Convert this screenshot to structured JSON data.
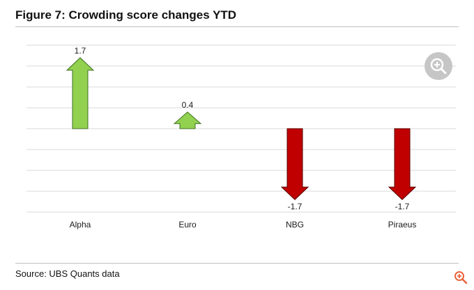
{
  "figure": {
    "title": "Figure 7: Crowding score changes YTD",
    "source": "Source: UBS Quants data"
  },
  "icons": {
    "zoom_overlay": "zoom-in-icon",
    "corner_zoom": "zoom-in-icon"
  },
  "colors": {
    "positive": "#92d050",
    "negative": "#c00000",
    "gridline": "#d9d9d9",
    "zoom_button": "#c6c6c6",
    "corner_icon": "#e8643c"
  },
  "chart_data": {
    "type": "bar",
    "style": "arrow",
    "categories": [
      "Alpha",
      "Euro",
      "NBG",
      "Piraeus"
    ],
    "values": [
      1.7,
      0.4,
      -1.7,
      -1.7
    ],
    "data_labels": [
      "1.7",
      "0.4",
      "-1.7",
      "-1.7"
    ],
    "ylim": [
      -2.0,
      2.0
    ],
    "grid": true,
    "legend": "none",
    "xlabel": "",
    "ylabel": ""
  }
}
